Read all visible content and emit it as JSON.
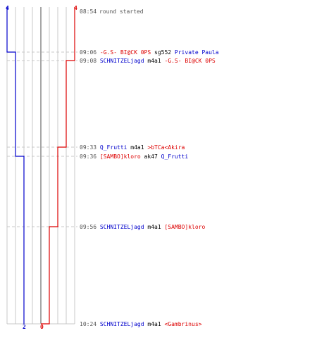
{
  "round": {
    "start_time": "08:54",
    "start_label": "round started"
  },
  "teams": {
    "blue": {
      "color": "#0000cc",
      "start_score": "4",
      "end_score": "2"
    },
    "red": {
      "color": "#dd0000",
      "start_score": "4",
      "end_score": "0"
    }
  },
  "colors": {
    "grid": "#c8c8c8",
    "guide": "#c8c8c8",
    "center_line": "#808080",
    "time_text": "#555555",
    "neutral_text": "#000000"
  },
  "events": [
    {
      "time": "09:06",
      "killer": "-G.S- BI@CK 0PS",
      "killer_team": "red",
      "weapon": "sg552",
      "victim": "Private Paula",
      "victim_team": "blue"
    },
    {
      "time": "09:08",
      "killer": "SCHNITZELjagd",
      "killer_team": "blue",
      "weapon": "m4a1",
      "victim": "-G.S- BI@CK 0PS",
      "victim_team": "red"
    },
    {
      "time": "09:33",
      "killer": "Q_Frutti",
      "killer_team": "blue",
      "weapon": "m4a1",
      "victim": ">bTCa<Akira",
      "victim_team": "red"
    },
    {
      "time": "09:36",
      "killer": "[SAMBO]kloro",
      "killer_team": "red",
      "weapon": "ak47",
      "victim": "Q_Frutti",
      "victim_team": "blue"
    },
    {
      "time": "09:56",
      "killer": "SCHNITZELjagd",
      "killer_team": "blue",
      "weapon": "m4a1",
      "victim": "[SAMBO]kloro",
      "victim_team": "red"
    },
    {
      "time": "10:24",
      "killer": "SCHNITZELjagd",
      "killer_team": "blue",
      "weapon": "m4a1",
      "victim": "<Gambrinus>",
      "victim_team": "red"
    }
  ]
}
